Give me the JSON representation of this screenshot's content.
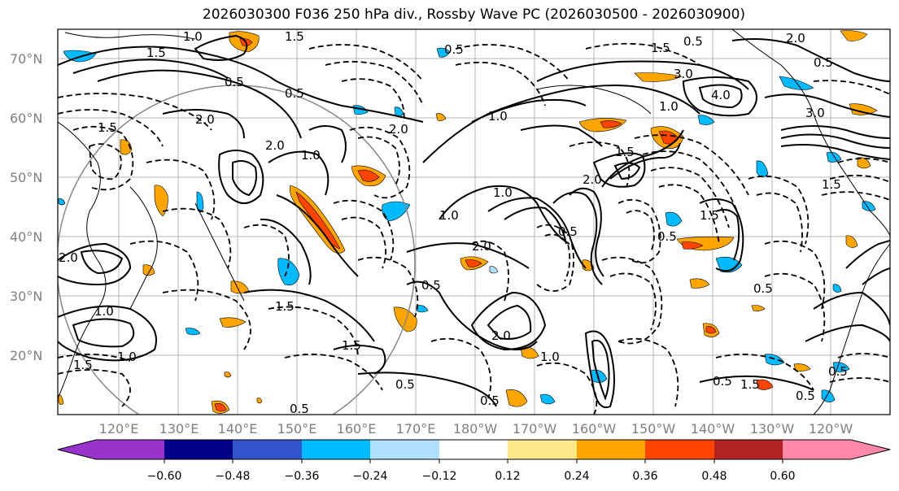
{
  "title": "2026030300 F036 250 hPa div., Rossby Wave PC (2026030500 - 2026030900)",
  "lat_labels": [
    "70°N",
    "60°N",
    "50°N",
    "40°N",
    "30°N",
    "20°N"
  ],
  "lon_labels": [
    "120°E",
    "130°E",
    "140°E",
    "150°E",
    "160°E",
    "170°E",
    "180°W",
    "170°W",
    "160°W",
    "150°W",
    "140°W",
    "130°W",
    "120°W"
  ],
  "colorbar": {
    "colors": [
      "#9933cc",
      "#000088",
      "#3355cc",
      "#00bbff",
      "#b0e2ff",
      "#ffffff",
      "#ffe88a",
      "#ffa500",
      "#ff4400",
      "#b22222",
      "#ff88aa"
    ],
    "tick_labels": [
      "−0.60",
      "−0.48",
      "−0.36",
      "−0.24",
      "−0.12",
      "0.12",
      "0.24",
      "0.36",
      "0.48",
      "0.60"
    ]
  },
  "contour_labels": [
    "1.0",
    "1.5",
    "0.5",
    "2.0",
    "1.5",
    "0.5",
    "1.5",
    "0.5",
    "2.0",
    "1.0",
    "2.0",
    "1.0",
    "1.5",
    "0.5",
    "2.0",
    "1.0",
    "1.5",
    "0.5",
    "3.0",
    "4.0",
    "3.0",
    "2.0",
    "1.5",
    "1.0",
    "0.5",
    "0.5",
    "1.5",
    "0.5",
    "1.0",
    "1.5",
    "2.0",
    "0.5",
    "1.0",
    "2.0",
    "1.0",
    "1.5",
    "0.5",
    "0.5",
    "2.0",
    "1.0",
    "1.5",
    "0.5",
    "0.5",
    "0.5",
    "1.5",
    "0.5"
  ]
}
